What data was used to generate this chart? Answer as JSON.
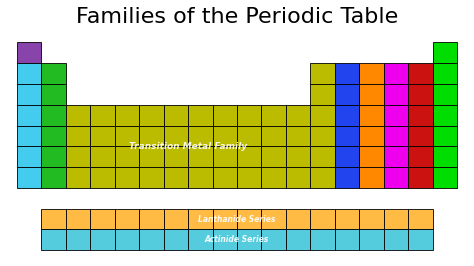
{
  "title": "Families of the Periodic Table",
  "title_fontsize": 16,
  "bg_color": "#ffffff",
  "colors": {
    "purple": "#8844AA",
    "cyan": "#44CCEE",
    "green": "#22BB22",
    "yellow": "#BBBB00",
    "blue": "#2244EE",
    "orange": "#FF8800",
    "magenta": "#EE00EE",
    "red": "#CC1111",
    "bright_green": "#00DD00",
    "orange_light": "#FFBB44",
    "sky_blue": "#55CCDD"
  },
  "transition_metal_label": "Transition Metal Family",
  "lanthanide_label": "Lanthanide Series",
  "actinide_label": "Actinide Series",
  "lw": 0.6
}
